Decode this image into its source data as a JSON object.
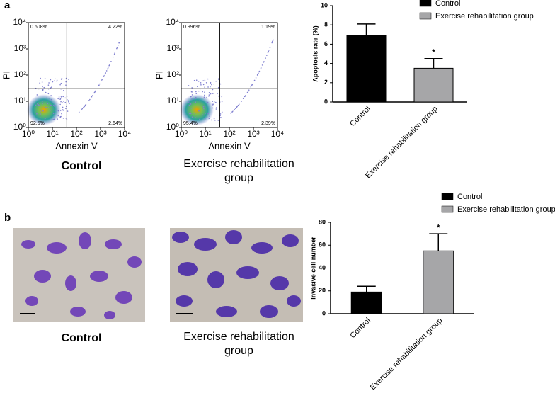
{
  "panel_labels": [
    "a",
    "b"
  ],
  "flow_plots": [
    {
      "caption": "Control",
      "x_label": "Annexin V",
      "y_label": "PI",
      "log_scale": true,
      "xlim": [
        1,
        10000
      ],
      "ylim": [
        1,
        10000
      ],
      "ticks": [
        {
          "value": 1,
          "label": "10⁰"
        },
        {
          "value": 10,
          "label": "10¹"
        },
        {
          "value": 100,
          "label": "10²"
        },
        {
          "value": 1000,
          "label": "10³"
        },
        {
          "value": 10000,
          "label": "10⁴"
        }
      ],
      "quadrants": {
        "upper_left": "0.608%",
        "upper_right": "4.22%",
        "lower_left": "92.5%",
        "lower_right": "2.64%"
      }
    },
    {
      "caption": "Exercise rehabilitation group",
      "x_label": "Annexin V",
      "y_label": "PI",
      "log_scale": true,
      "xlim": [
        1,
        10000
      ],
      "ylim": [
        1,
        10000
      ],
      "ticks": [
        {
          "value": 1,
          "label": "10⁰"
        },
        {
          "value": 10,
          "label": "10¹"
        },
        {
          "value": 100,
          "label": "10²"
        },
        {
          "value": 1000,
          "label": "10³"
        },
        {
          "value": 10000,
          "label": "10⁴"
        }
      ],
      "quadrants": {
        "upper_left": "0.996%",
        "upper_right": "1.19%",
        "lower_left": "95.4%",
        "lower_right": "2.39%"
      }
    }
  ],
  "micrographs": [
    {
      "caption": "Control"
    },
    {
      "caption": "Exercise rehabilitation group"
    }
  ],
  "chart_data": [
    {
      "type": "bar",
      "y_label": "Apoptosis rate (%)",
      "categories": [
        "Control",
        "Exercise rehabilitation group"
      ],
      "values": [
        6.9,
        3.5
      ],
      "errors": [
        1.2,
        1.0
      ],
      "colors": [
        "#000000",
        "#a6a6a8"
      ],
      "ylim": [
        0,
        10
      ],
      "yticks": [
        0,
        2,
        4,
        6,
        8,
        10
      ],
      "annotations": [
        {
          "category": "Exercise rehabilitation group",
          "text": "*"
        }
      ],
      "legend": "top-right"
    },
    {
      "type": "bar",
      "y_label": "Invasive cell number",
      "categories": [
        "Control",
        "Exercise rehabilitation group"
      ],
      "values": [
        19,
        55
      ],
      "errors": [
        5,
        15
      ],
      "colors": [
        "#000000",
        "#a6a6a8"
      ],
      "ylim": [
        0,
        80
      ],
      "yticks": [
        0,
        20,
        40,
        60,
        80
      ],
      "annotations": [
        {
          "category": "Exercise rehabilitation group",
          "text": "*"
        }
      ],
      "legend": "top-right"
    }
  ]
}
